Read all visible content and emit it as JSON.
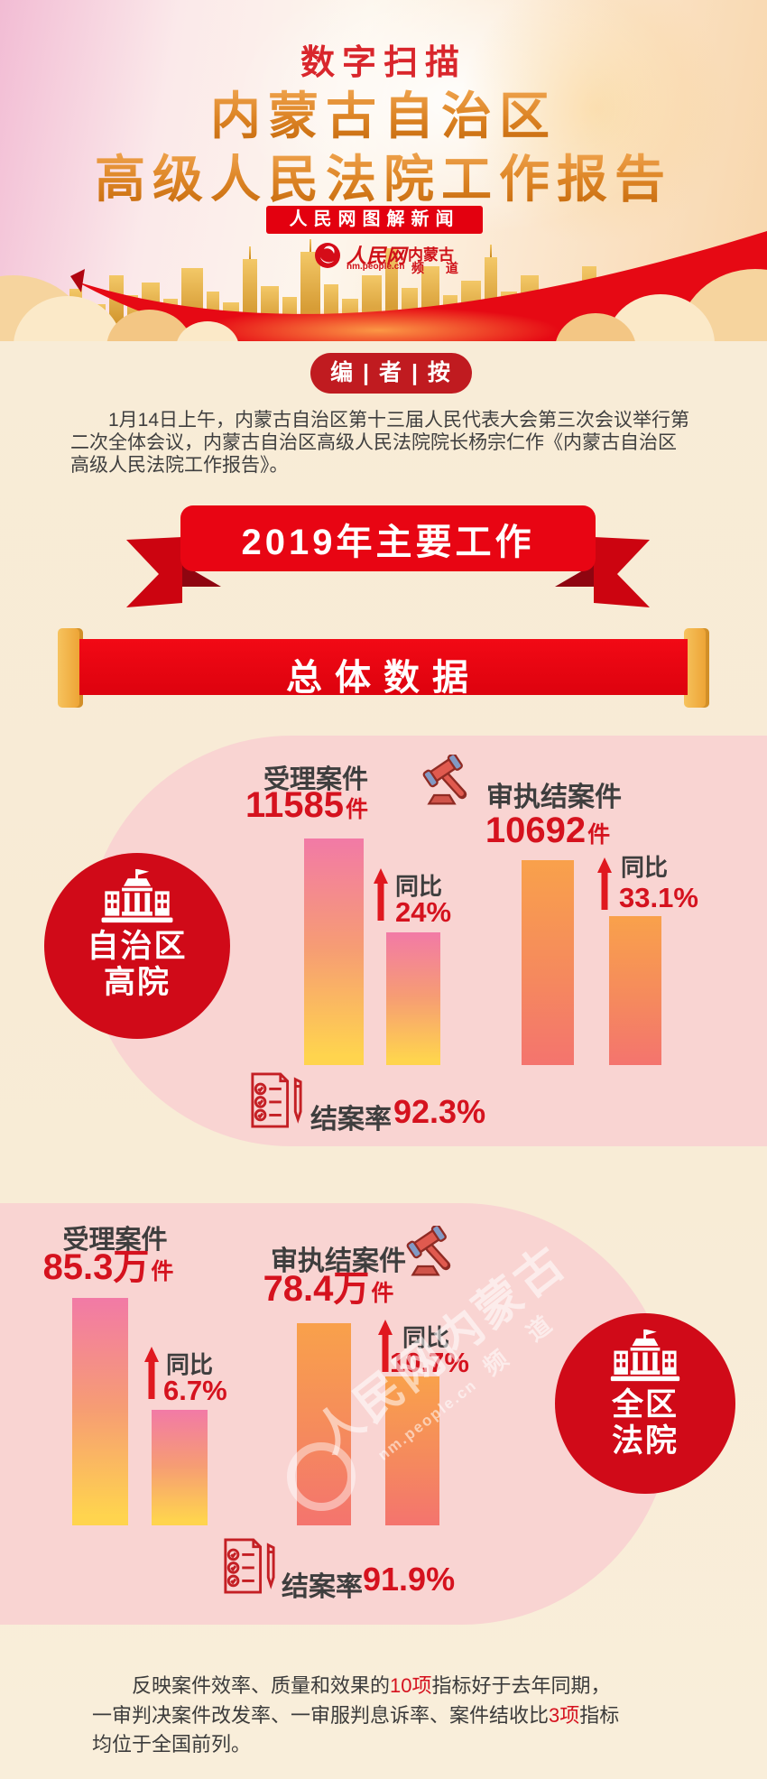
{
  "header": {
    "kicker": "数字扫描",
    "title_line1": "内蒙古自治区",
    "title_line2": "高级人民法院工作报告",
    "badge": "人民网图解新闻",
    "logo": {
      "name": "人民网",
      "url": "nm.people.cn",
      "region": "内蒙古",
      "channel": "频 道"
    }
  },
  "editor_note": {
    "label": "编 | 者 | 按",
    "lines": [
      [
        {
          "t": "1月14日上午，内蒙古自治区第十三届人民代表大会第三次会议举行第"
        }
      ],
      [
        {
          "t": "二次全体会议，内蒙古自治区高级人民法院院长杨宗仁作《内蒙古自治区"
        }
      ],
      [
        {
          "t": "高级人民法院工作报告》。"
        }
      ]
    ]
  },
  "banners": {
    "main": "2019年主要工作",
    "section": "总体数据"
  },
  "sections": [
    {
      "entity": {
        "line1": "自治区",
        "line2": "高院"
      },
      "groups": [
        {
          "label": "受理案件",
          "value": "11585",
          "unit": "件",
          "yoy_label": "同比",
          "yoy": "24%"
        },
        {
          "label": "审执结案件",
          "value": "10692",
          "unit": "件",
          "yoy_label": "同比",
          "yoy": "33.1%"
        }
      ],
      "closing_label": "结案率",
      "closing_value": "92.3%"
    },
    {
      "entity": {
        "line1": "全区",
        "line2": "法院"
      },
      "groups": [
        {
          "label": "受理案件",
          "value": "85.3万",
          "unit": "件",
          "yoy_label": "同比",
          "yoy": "6.7%"
        },
        {
          "label": "审执结案件",
          "value": "78.4万",
          "unit": "件",
          "yoy_label": "同比",
          "yoy": "10.7%"
        }
      ],
      "closing_label": "结案率",
      "closing_value": "91.9%"
    }
  ],
  "watermark": {
    "line1": "人民网内蒙古",
    "url": "nm.people.cn",
    "channel": "频 道"
  },
  "footer_note": {
    "lines": [
      [
        {
          "t": "反映案件效率、质量和效果的"
        },
        {
          "t": "10项",
          "red": true
        },
        {
          "t": "指标好于去年同期，"
        }
      ],
      [
        {
          "t": "一审判决案件改发率、一审服判息诉率、案件结收比"
        },
        {
          "t": "3项",
          "red": true
        },
        {
          "t": "指标"
        }
      ],
      [
        {
          "t": "均位于全国前列。"
        }
      ]
    ]
  },
  "chart_data": [
    {
      "type": "bar",
      "title": "自治区高院 总体数据",
      "categories": [
        "受理案件",
        "审执结案件"
      ],
      "values": [
        11585,
        10692
      ],
      "unit": "件",
      "yoy_change": [
        "+24%",
        "+33.1%"
      ],
      "closing_rate": "92.3%",
      "legend_position": "none",
      "grid": false
    },
    {
      "type": "bar",
      "title": "全区法院 总体数据",
      "categories": [
        "受理案件",
        "审执结案件"
      ],
      "values": [
        "85.3万",
        "78.4万"
      ],
      "unit": "件",
      "yoy_change": [
        "+6.7%",
        "+10.7%"
      ],
      "closing_rate": "91.9%",
      "legend_position": "none",
      "grid": false
    }
  ],
  "accent_colors": {
    "bright_red": "#e60914",
    "dark_red_badge": "#c01b20",
    "circle_red": "#d00a18",
    "number_red": "#d5121e",
    "pink_blob": "#f9d4d2",
    "gold_cap": "#f3b44a",
    "bar_pink_top": "#f27aa6",
    "bar_yellow_bottom": "#ffd44e",
    "bar_orange_top": "#f9a14b",
    "bar_salmon_bottom": "#f4746e"
  }
}
